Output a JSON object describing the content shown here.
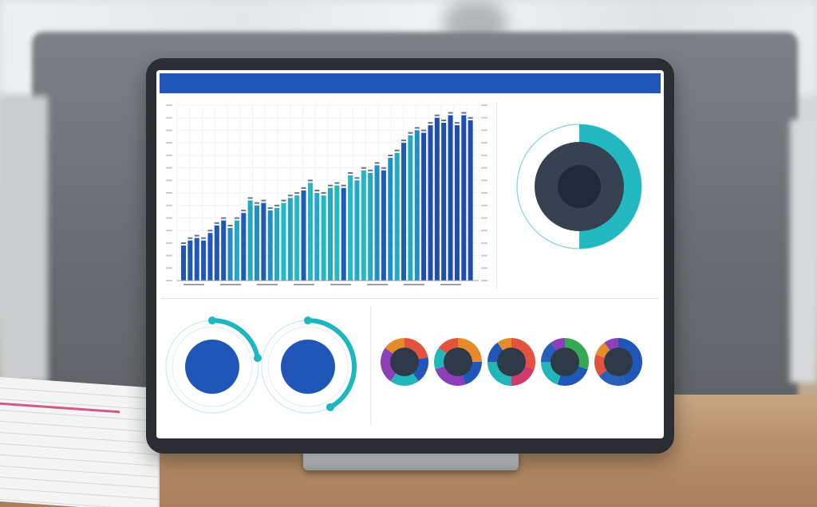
{
  "header": {
    "title": "",
    "subtitle": ""
  },
  "bar_chart": {
    "chart_data": {
      "type": "bar",
      "title": "",
      "xlabel": "",
      "ylabel": "",
      "series": [
        {
          "values": [
            14,
            16,
            17,
            16,
            19,
            22,
            24,
            21,
            24,
            27,
            32,
            30,
            31,
            28,
            29,
            31,
            33,
            34,
            36,
            39,
            35,
            34,
            37,
            38,
            37,
            42,
            40,
            44,
            43,
            46,
            44,
            49,
            51,
            55,
            58,
            60,
            59,
            62,
            65,
            63,
            66,
            62,
            66,
            64
          ]
        }
      ],
      "colors": [
        "#1f56b8",
        "#2a9ed0",
        "#22b6b8"
      ]
    }
  },
  "donut_main": {
    "center_label": "",
    "chart_data": {
      "type": "pie",
      "values": [
        50,
        50
      ],
      "colors": [
        "#24b8c2",
        "#eef6f7"
      ]
    },
    "legend_top": [
      "",
      ""
    ],
    "legend_title": "",
    "legend_items": [
      {
        "label": "",
        "color": "#e2523f"
      },
      {
        "label": "",
        "color": "#e58b2a"
      },
      {
        "label": "",
        "color": "#2a5fb8"
      },
      {
        "label": "",
        "color": "#34a853"
      },
      {
        "label": "",
        "color": "#e2523f"
      },
      {
        "label": "",
        "color": "#8b3fb8"
      }
    ]
  },
  "gauges": {
    "title": "",
    "items": [
      {
        "center_label": "",
        "progress": 0.22
      },
      {
        "center_label": "",
        "progress": 0.42
      }
    ]
  },
  "donut_multiples": {
    "title": "",
    "items": [
      {
        "center_label": "",
        "label1": "",
        "label2": "",
        "segments": [
          22,
          18,
          20,
          25,
          15
        ],
        "colors": [
          "#e2523f",
          "#1f56b8",
          "#22b6b8",
          "#8b3fb8",
          "#e58b2a"
        ]
      },
      {
        "center_label": "",
        "label1": "",
        "label2": "",
        "segments": [
          25,
          20,
          25,
          15,
          15
        ],
        "colors": [
          "#e58b2a",
          "#1f56b8",
          "#8b3fb8",
          "#22b6b8",
          "#e2523f"
        ]
      },
      {
        "center_label": "",
        "label1": "",
        "label2": "",
        "segments": [
          30,
          20,
          25,
          15,
          10
        ],
        "colors": [
          "#e2523f",
          "#d13b6b",
          "#22b6b8",
          "#1f56b8",
          "#e58b2a"
        ]
      },
      {
        "center_label": "",
        "label1": "",
        "label2": "",
        "segments": [
          30,
          25,
          20,
          15,
          10
        ],
        "colors": [
          "#34a853",
          "#1f56b8",
          "#22b6b8",
          "#2a5fb8",
          "#8b3fb8"
        ]
      },
      {
        "center_label": "",
        "label1": "",
        "label2": "",
        "segments": [
          45,
          20,
          15,
          10,
          10
        ],
        "colors": [
          "#1f56b8",
          "#2a5fb8",
          "#e2523f",
          "#e58b2a",
          "#8b3fb8"
        ]
      }
    ]
  }
}
